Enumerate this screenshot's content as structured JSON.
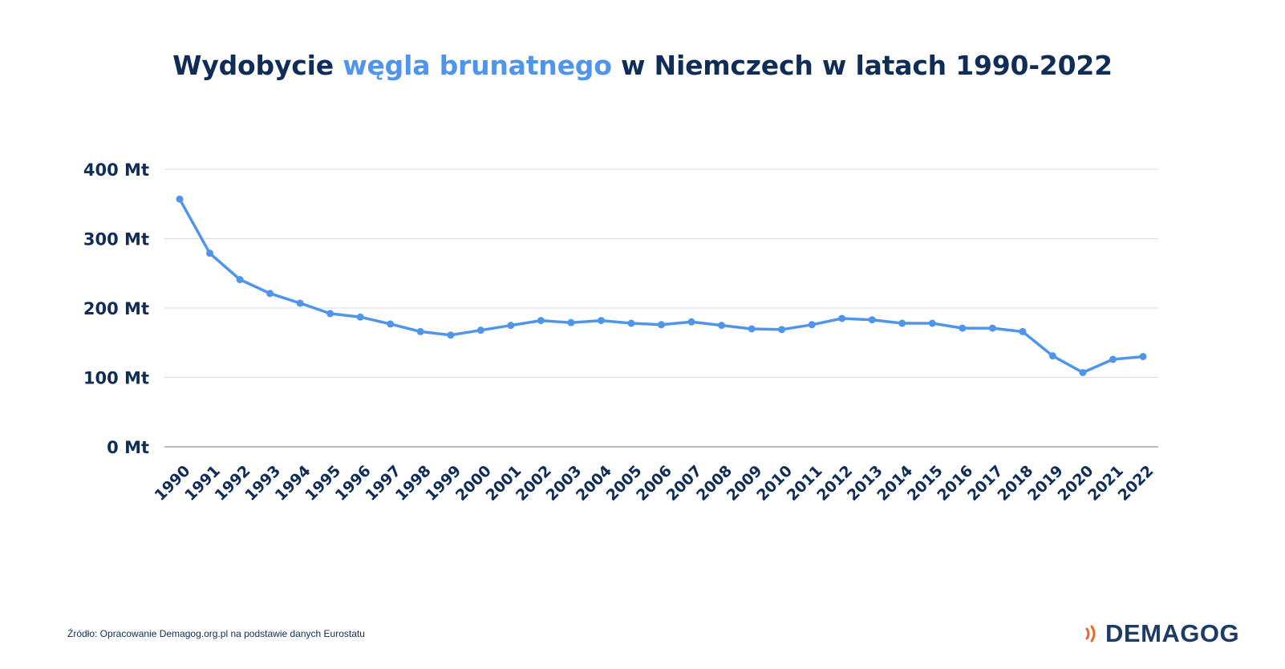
{
  "title": {
    "part1": "Wydobycie ",
    "highlight": "węgla brunatnego",
    "part2": " w Niemczech w latach 1990-2022"
  },
  "colors": {
    "navy": "#0f2d57",
    "accent": "#5095ec",
    "grid": "#d7dce4",
    "logo_mark": "#e8692c"
  },
  "source": "Źródło: Opracowanie Demagog.org.pl na podstawie danych Eurostatu",
  "logo": {
    "icon": "signal-waves-icon",
    "text": "DEMAGOG"
  },
  "chart_data": {
    "type": "line",
    "x": [
      "1990",
      "1991",
      "1992",
      "1993",
      "1994",
      "1995",
      "1996",
      "1997",
      "1998",
      "1999",
      "2000",
      "2001",
      "2002",
      "2003",
      "2004",
      "2005",
      "2006",
      "2007",
      "2008",
      "2009",
      "2010",
      "2011",
      "2012",
      "2013",
      "2014",
      "2015",
      "2016",
      "2017",
      "2018",
      "2019",
      "2020",
      "2021",
      "2022"
    ],
    "series": [
      {
        "values": [
          357,
          279,
          241,
          221,
          207,
          192,
          187,
          177,
          166,
          161,
          168,
          175,
          182,
          179,
          182,
          178,
          176,
          180,
          175,
          170,
          169,
          176,
          185,
          183,
          178,
          178,
          171,
          171,
          166,
          131,
          107,
          126,
          130
        ]
      }
    ],
    "yticks": [
      0,
      100,
      200,
      300,
      400
    ],
    "ytick_labels": [
      "0 Mt",
      "100 Mt",
      "200 Mt",
      "300 Mt",
      "400 Mt"
    ],
    "ylim": [
      0,
      400
    ],
    "grid": true,
    "legend": "none",
    "title": "Wydobycie węgla brunatnego w Niemczech w latach 1990-2022"
  }
}
